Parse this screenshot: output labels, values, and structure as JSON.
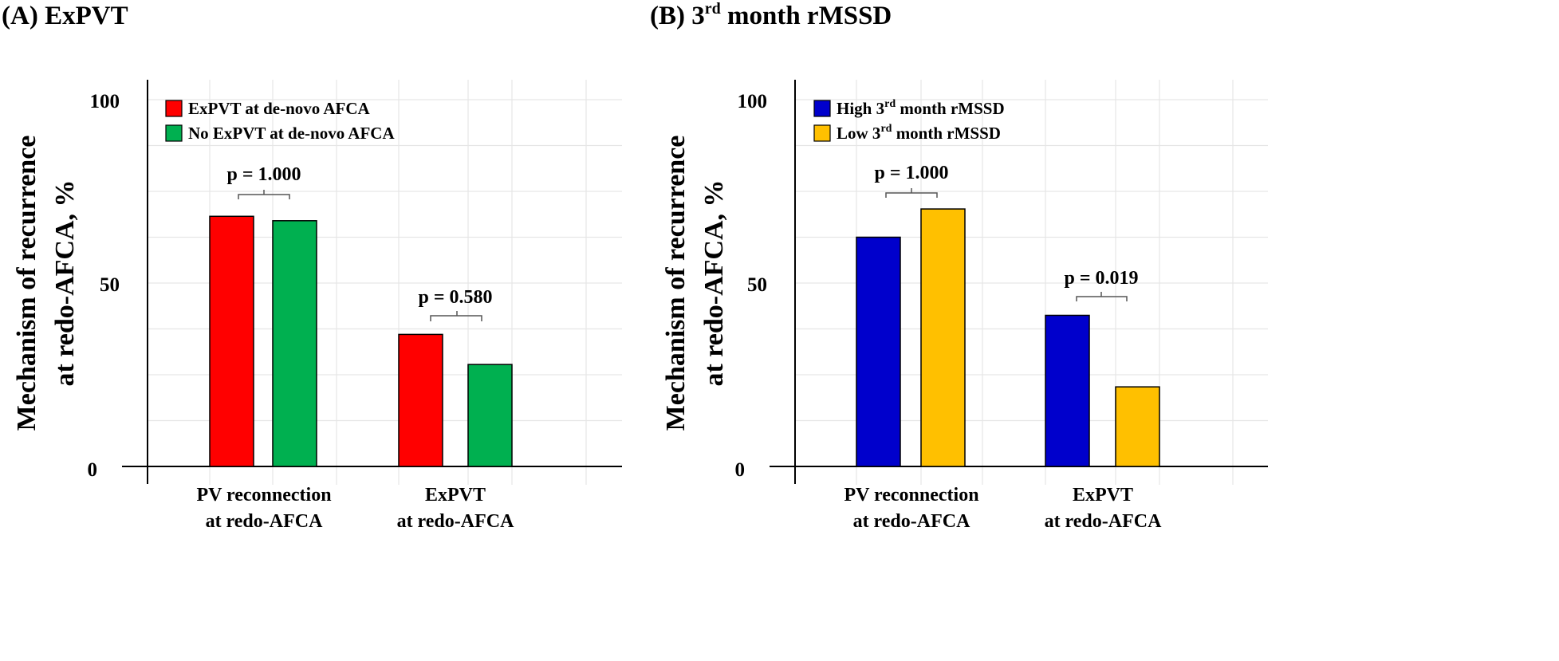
{
  "chart_data": [
    {
      "type": "bar",
      "panel": "(A)",
      "title": "ExPVT",
      "ylabel_lines": [
        "Mechanism of recurrence",
        "at redo-AFCA, %"
      ],
      "xlabel": "",
      "ylim": [
        0,
        100
      ],
      "yticks": [
        0,
        50,
        100
      ],
      "grid": true,
      "legend_position": "top-left",
      "categories": [
        [
          "PV reconnection",
          "at redo-AFCA"
        ],
        [
          "ExPVT",
          "at redo-AFCA"
        ]
      ],
      "series": [
        {
          "name": "ExPVT at de-novo AFCA",
          "sup": "",
          "name_rest": "",
          "color": "#ff0000",
          "values": [
            68.2,
            36.0
          ]
        },
        {
          "name": "No ExPVT at de-novo AFCA",
          "sup": "",
          "name_rest": "",
          "color": "#00b050",
          "values": [
            67.0,
            27.8
          ]
        }
      ],
      "annotations": [
        {
          "text": "p = 1.000",
          "category_index": 0
        },
        {
          "text": "p = 0.580",
          "category_index": 1
        }
      ]
    },
    {
      "type": "bar",
      "panel": "(B)",
      "title": "3",
      "title_sup": "rd",
      "title_rest": " month rMSSD",
      "ylabel_lines": [
        "Mechanism of recurrence",
        "at redo-AFCA, %"
      ],
      "xlabel": "",
      "ylim": [
        0,
        100
      ],
      "yticks": [
        0,
        50,
        100
      ],
      "grid": true,
      "legend_position": "top-left",
      "categories": [
        [
          "PV reconnection",
          "at redo-AFCA"
        ],
        [
          "ExPVT",
          "at redo-AFCA"
        ]
      ],
      "series": [
        {
          "name": "High 3",
          "sup": "rd",
          "name_rest": " month rMSSD",
          "color": "#0000cc",
          "values": [
            62.5,
            41.2
          ]
        },
        {
          "name": "Low 3",
          "sup": "rd",
          "name_rest": " month rMSSD",
          "color": "#ffc000",
          "values": [
            70.2,
            21.7
          ]
        }
      ],
      "annotations": [
        {
          "text": "p = 1.000",
          "category_index": 0
        },
        {
          "text": "p = 0.019",
          "category_index": 1
        }
      ]
    }
  ]
}
